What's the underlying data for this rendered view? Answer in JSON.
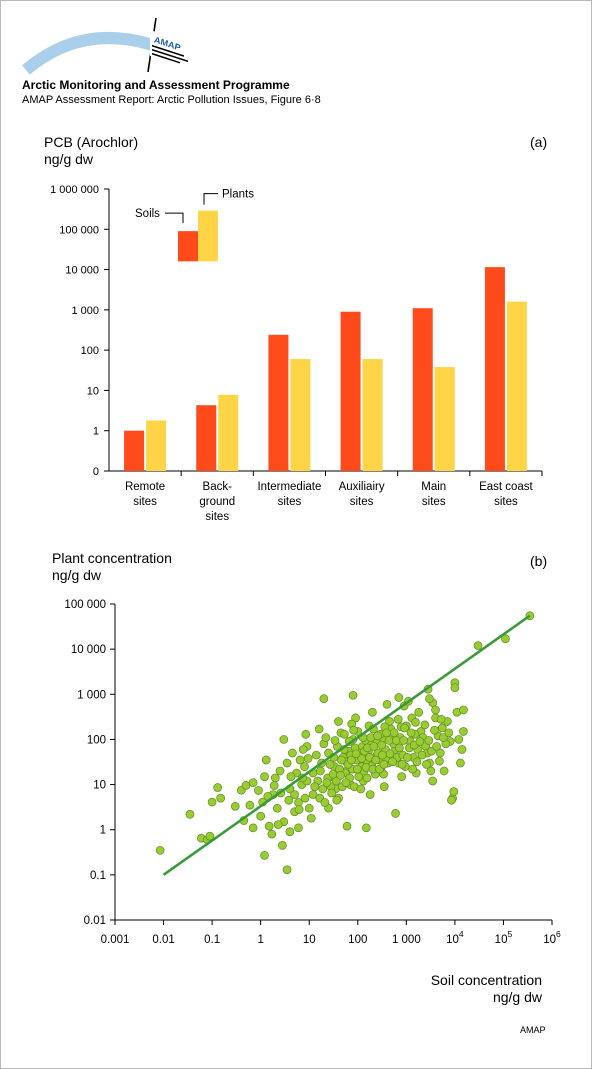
{
  "header": {
    "org_title": "Arctic Monitoring and Assessment Programme",
    "subtitle": "AMAP Assessment Report: Arctic Pollution Issues, Figure 6·8",
    "logo_text": "AMAP"
  },
  "footer": {
    "credit": "AMAP"
  },
  "colors": {
    "soils": "#ff4a1c",
    "plants": "#ffd447",
    "points": "#99cc33",
    "point_edge": "#5e8c1f",
    "trend": "#3a9a3a",
    "axis": "#000000"
  },
  "chart_data": [
    {
      "type": "bar",
      "panel_letter": "(a)",
      "ylabel_line1": "PCB (Arochlor)",
      "ylabel_line2": "ng/g dw",
      "yscale": "log",
      "ylim": [
        0.1,
        1000000
      ],
      "y_ticks": [
        {
          "value": 0.1,
          "label": "0"
        },
        {
          "value": 1,
          "label": "1"
        },
        {
          "value": 10,
          "label": "10"
        },
        {
          "value": 100,
          "label": "100"
        },
        {
          "value": 1000,
          "label": "1 000"
        },
        {
          "value": 10000,
          "label": "10 000"
        },
        {
          "value": 100000,
          "label": "100 000"
        },
        {
          "value": 1000000,
          "label": "1 000 000"
        }
      ],
      "categories": [
        [
          "Remote",
          "sites"
        ],
        [
          "Back-",
          "ground",
          "sites"
        ],
        [
          "Intermediate",
          "sites"
        ],
        [
          "Auxiliairy",
          "sites"
        ],
        [
          "Main",
          "sites"
        ],
        [
          "East coast",
          "sites"
        ]
      ],
      "series": [
        {
          "name": "Soils",
          "color": "#ff4a1c",
          "values": [
            1,
            4.3,
            240,
            900,
            1100,
            11500
          ]
        },
        {
          "name": "Plants",
          "color": "#ffd447",
          "values": [
            1.8,
            7.8,
            60,
            60,
            38,
            1600
          ]
        }
      ],
      "legend": {
        "placement": "inside-top-left",
        "items": [
          {
            "label": "Soils",
            "series": 0,
            "value": 90000
          },
          {
            "label": "Plants",
            "series": 1,
            "value": 290000
          }
        ],
        "swatch_base": 16000
      }
    },
    {
      "type": "scatter",
      "panel_letter": "(b)",
      "ylabel_line1": "Plant concentration",
      "ylabel_line2": "ng/g dw",
      "xlabel_line1": "Soil concentration",
      "xlabel_line2": "ng/g dw",
      "xscale": "log",
      "yscale": "log",
      "xlim": [
        0.001,
        1000000
      ],
      "ylim": [
        0.01,
        100000
      ],
      "x_ticks": [
        {
          "value": 0.001,
          "label": "0.001"
        },
        {
          "value": 0.01,
          "label": "0.01"
        },
        {
          "value": 0.1,
          "label": "0.1"
        },
        {
          "value": 1,
          "label": "1"
        },
        {
          "value": 10,
          "label": "10"
        },
        {
          "value": 100,
          "label": "100"
        },
        {
          "value": 1000,
          "label": "1 000"
        },
        {
          "value": 10000,
          "label": "10",
          "sup": "4"
        },
        {
          "value": 100000,
          "label": "10",
          "sup": "5"
        },
        {
          "value": 1000000,
          "label": "10",
          "sup": "6"
        }
      ],
      "y_ticks": [
        {
          "value": 0.01,
          "label": "0.01"
        },
        {
          "value": 0.1,
          "label": "0.1"
        },
        {
          "value": 1,
          "label": "1"
        },
        {
          "value": 10,
          "label": "10"
        },
        {
          "value": 100,
          "label": "100"
        },
        {
          "value": 1000,
          "label": "1 000"
        },
        {
          "value": 10000,
          "label": "10 000"
        },
        {
          "value": 100000,
          "label": "100 000"
        }
      ],
      "trend_line": [
        [
          0.01,
          0.1
        ],
        [
          350000,
          55000
        ]
      ],
      "points": [
        [
          0.0085,
          0.35
        ],
        [
          0.035,
          2.2
        ],
        [
          0.06,
          0.65
        ],
        [
          0.08,
          0.6
        ],
        [
          0.09,
          0.72
        ],
        [
          0.1,
          4.1
        ],
        [
          0.13,
          8.6
        ],
        [
          0.15,
          5.0
        ],
        [
          0.3,
          3.3
        ],
        [
          0.4,
          7.5
        ],
        [
          0.5,
          9.6
        ],
        [
          0.7,
          11
        ],
        [
          0.9,
          7.4
        ],
        [
          1.1,
          4.1
        ],
        [
          1.2,
          15
        ],
        [
          1.3,
          35
        ],
        [
          1.5,
          1.2
        ],
        [
          0.7,
          1.1
        ],
        [
          0.45,
          1.6
        ],
        [
          0.6,
          3.5
        ],
        [
          1.0,
          2.0
        ],
        [
          1.8,
          6.0
        ],
        [
          2.0,
          14
        ],
        [
          2.5,
          20
        ],
        [
          3.0,
          100
        ],
        [
          3.5,
          30
        ],
        [
          4.0,
          8.0
        ],
        [
          4.5,
          50
        ],
        [
          2.2,
          3.0
        ],
        [
          3.0,
          1.5
        ],
        [
          3.5,
          0.13
        ],
        [
          1.2,
          0.27
        ],
        [
          2.8,
          0.45
        ],
        [
          4.0,
          0.9
        ],
        [
          5.0,
          2.5
        ],
        [
          6.0,
          4.0
        ],
        [
          7.0,
          10
        ],
        [
          8.0,
          25
        ],
        [
          9.0,
          70
        ],
        [
          5.5,
          18
        ],
        [
          6.5,
          35
        ],
        [
          7.5,
          60
        ],
        [
          8.5,
          130
        ],
        [
          10,
          3.0
        ],
        [
          12,
          6.0
        ],
        [
          15,
          12
        ],
        [
          18,
          30
        ],
        [
          20,
          80
        ],
        [
          25,
          50
        ],
        [
          30,
          15
        ],
        [
          35,
          8
        ],
        [
          40,
          250
        ],
        [
          45,
          140
        ],
        [
          50,
          40
        ],
        [
          60,
          20
        ],
        [
          70,
          10
        ],
        [
          80,
          100
        ],
        [
          90,
          300
        ],
        [
          100,
          150
        ],
        [
          110,
          60
        ],
        [
          120,
          25
        ],
        [
          130,
          12
        ],
        [
          150,
          80
        ],
        [
          170,
          200
        ],
        [
          200,
          400
        ],
        [
          220,
          100
        ],
        [
          250,
          45
        ],
        [
          300,
          20
        ],
        [
          350,
          9
        ],
        [
          400,
          600
        ],
        [
          450,
          250
        ],
        [
          500,
          120
        ],
        [
          600,
          60
        ],
        [
          700,
          30
        ],
        [
          800,
          15
        ],
        [
          900,
          550
        ],
        [
          1000,
          200
        ],
        [
          1200,
          90
        ],
        [
          1400,
          40
        ],
        [
          1600,
          18
        ],
        [
          1800,
          400
        ],
        [
          2000,
          150
        ],
        [
          2500,
          70
        ],
        [
          3000,
          30
        ],
        [
          3500,
          12
        ],
        [
          4000,
          300
        ],
        [
          4500,
          120
        ],
        [
          5000,
          50
        ],
        [
          6000,
          20
        ],
        [
          7000,
          250
        ],
        [
          8000,
          90
        ],
        [
          9000,
          5.0
        ],
        [
          10000,
          1800
        ],
        [
          11000,
          400
        ],
        [
          12000,
          100
        ],
        [
          13000,
          30
        ],
        [
          14000,
          60
        ],
        [
          15000,
          150
        ],
        [
          10000,
          1400
        ],
        [
          9500,
          7.0
        ],
        [
          8500,
          4.5
        ],
        [
          20,
          800
        ],
        [
          80,
          950
        ],
        [
          700,
          850
        ],
        [
          1100,
          700
        ],
        [
          2800,
          1300
        ],
        [
          3500,
          650
        ],
        [
          30000,
          12000
        ],
        [
          110000,
          17000
        ],
        [
          350000,
          55000
        ],
        [
          3000,
          800
        ],
        [
          4000,
          450
        ],
        [
          15000,
          450
        ],
        [
          60,
          1.2
        ],
        [
          150,
          1.1
        ],
        [
          600,
          2.3
        ],
        [
          25,
          3.0
        ],
        [
          40,
          5.0
        ],
        [
          11,
          1.8
        ],
        [
          6,
          1.1
        ],
        [
          2.3,
          1.3
        ],
        [
          1.7,
          0.8
        ],
        [
          14,
          45
        ],
        [
          16,
          170
        ],
        [
          22,
          110
        ],
        [
          28,
          9.0
        ],
        [
          33,
          25
        ],
        [
          38,
          70
        ],
        [
          55,
          18
        ],
        [
          65,
          55
        ],
        [
          75,
          220
        ],
        [
          95,
          35
        ],
        [
          105,
          15
        ],
        [
          140,
          45
        ],
        [
          160,
          30
        ],
        [
          180,
          6.0
        ],
        [
          210,
          170
        ],
        [
          240,
          90
        ],
        [
          270,
          35
        ],
        [
          330,
          110
        ],
        [
          370,
          60
        ],
        [
          420,
          30
        ],
        [
          480,
          170
        ],
        [
          550,
          80
        ],
        [
          650,
          40
        ],
        [
          750,
          110
        ],
        [
          850,
          45
        ],
        [
          950,
          25
        ],
        [
          1300,
          300
        ],
        [
          1500,
          130
        ],
        [
          1700,
          60
        ],
        [
          2200,
          110
        ],
        [
          2700,
          50
        ],
        [
          3200,
          20
        ],
        [
          5500,
          180
        ],
        [
          6500,
          80
        ],
        [
          12,
          18
        ],
        [
          9,
          12
        ],
        [
          13,
          9
        ],
        [
          17,
          20
        ],
        [
          19,
          8
        ],
        [
          24,
          14
        ],
        [
          27,
          28
        ],
        [
          32,
          40
        ],
        [
          36,
          12
        ],
        [
          42,
          22
        ],
        [
          48,
          9
        ],
        [
          52,
          60
        ],
        [
          58,
          32
        ],
        [
          68,
          14
        ],
        [
          72,
          45
        ],
        [
          78,
          22
        ],
        [
          85,
          9
        ],
        [
          88,
          65
        ],
        [
          120,
          38
        ],
        [
          125,
          70
        ],
        [
          135,
          20
        ],
        [
          145,
          95
        ],
        [
          155,
          14
        ],
        [
          165,
          55
        ],
        [
          190,
          75
        ],
        [
          195,
          26
        ],
        [
          230,
          17
        ],
        [
          260,
          50
        ],
        [
          290,
          130
        ],
        [
          310,
          75
        ],
        [
          340,
          17
        ],
        [
          360,
          190
        ],
        [
          380,
          38
        ],
        [
          440,
          95
        ],
        [
          460,
          48
        ],
        [
          520,
          32
        ],
        [
          560,
          140
        ],
        [
          620,
          95
        ],
        [
          680,
          280
        ],
        [
          720,
          65
        ],
        [
          780,
          190
        ],
        [
          820,
          28
        ],
        [
          880,
          95
        ],
        [
          920,
          180
        ],
        [
          1050,
          40
        ],
        [
          1150,
          65
        ],
        [
          1250,
          140
        ],
        [
          1350,
          22
        ],
        [
          1450,
          75
        ],
        [
          1550,
          240
        ],
        [
          1650,
          32
        ],
        [
          1900,
          90
        ],
        [
          2100,
          45
        ],
        [
          2400,
          210
        ],
        [
          2600,
          28
        ],
        [
          2900,
          95
        ],
        [
          3300,
          55
        ],
        [
          3800,
          160
        ],
        [
          4200,
          70
        ],
        [
          4800,
          33
        ],
        [
          5200,
          280
        ],
        [
          5800,
          110
        ],
        [
          7500,
          140
        ],
        [
          5,
          6.0
        ],
        [
          6.2,
          2.8
        ],
        [
          7.3,
          14
        ],
        [
          8.2,
          5.0
        ],
        [
          9.5,
          38
        ],
        [
          3.8,
          4.5
        ],
        [
          4.2,
          15
        ],
        [
          2.6,
          6.5
        ],
        [
          1.9,
          9.5
        ],
        [
          1.4,
          5.5
        ],
        [
          16.5,
          5.0
        ],
        [
          21,
          4.0
        ],
        [
          23,
          11
        ],
        [
          29,
          6.5
        ],
        [
          31,
          17
        ],
        [
          34,
          95
        ],
        [
          37,
          4.5
        ],
        [
          44,
          16
        ],
        [
          46,
          35
        ],
        [
          53,
          130
        ],
        [
          57,
          11
        ],
        [
          63,
          28
        ],
        [
          67,
          90
        ],
        [
          74,
          35
        ],
        [
          82,
          160
        ],
        [
          92,
          48
        ],
        [
          98,
          22
        ],
        [
          115,
          8.0
        ],
        [
          128,
          110
        ],
        [
          138,
          55
        ],
        [
          148,
          24
        ],
        [
          158,
          65
        ],
        [
          175,
          40
        ],
        [
          185,
          110
        ],
        [
          205,
          22
        ],
        [
          215,
          70
        ],
        [
          235,
          35
        ],
        [
          255,
          120
        ],
        [
          280,
          22
        ],
        [
          320,
          45
        ],
        [
          345,
          28
        ],
        [
          390,
          140
        ]
      ]
    }
  ]
}
